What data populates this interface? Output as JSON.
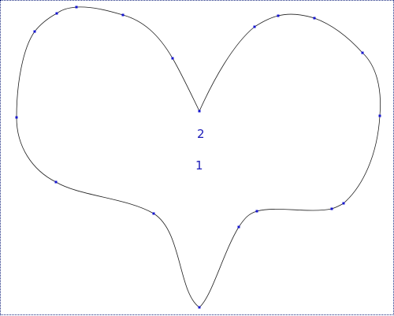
{
  "labels": {
    "upper": "2",
    "lower": "1"
  },
  "colors": {
    "curve": "#202020",
    "control_point": "#1515d0",
    "label": "#1a1ab8",
    "frame": "#1a2a80"
  }
}
